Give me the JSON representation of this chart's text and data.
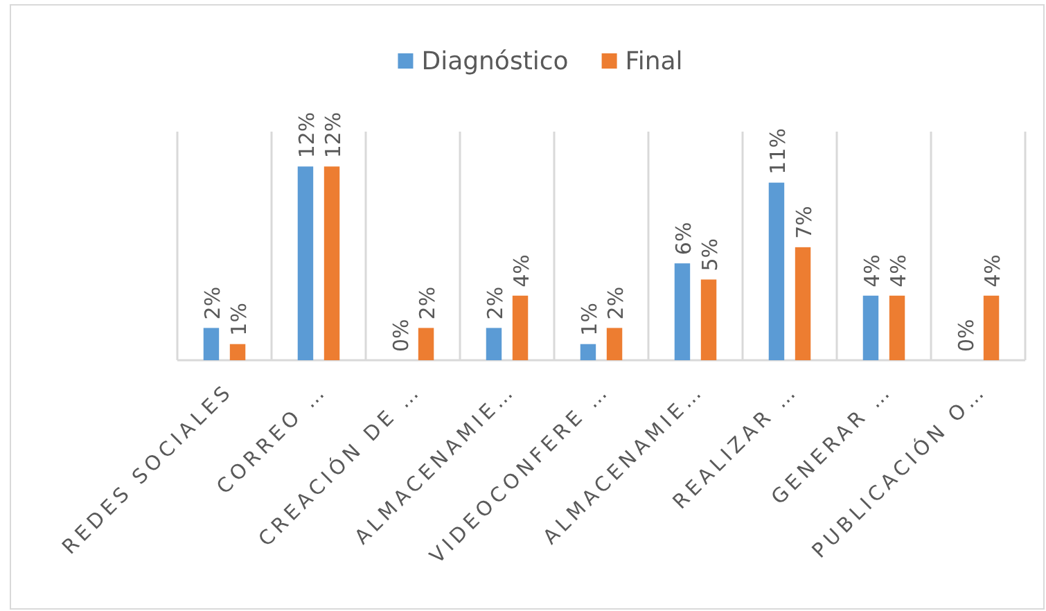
{
  "chart_data": {
    "type": "bar",
    "categories": [
      "REDES SOCIALES",
      "CORREO …",
      "CREACIÓN DE …",
      "ALMACENAMIE…",
      "VIDEOCONFERE …",
      "ALMACENAMIE…",
      "REALIZAR …",
      "GENERAR …",
      "PUBLICACIÓN O…"
    ],
    "series": [
      {
        "name": "Diagnóstico",
        "color": "#5b9bd5",
        "values": [
          2,
          12,
          0,
          2,
          1,
          6,
          11,
          4,
          0
        ],
        "value_labels": [
          "2%",
          "12%",
          "0%",
          "2%",
          "1%",
          "6%",
          "11%",
          "4%",
          "0%"
        ]
      },
      {
        "name": "Final",
        "color": "#ed7d31",
        "values": [
          1,
          12,
          2,
          4,
          2,
          5,
          7,
          4,
          4
        ],
        "value_labels": [
          "1%",
          "12%",
          "2%",
          "4%",
          "2%",
          "5%",
          "7%",
          "4%",
          "4%"
        ]
      }
    ],
    "grid": "x",
    "legend": "top"
  }
}
